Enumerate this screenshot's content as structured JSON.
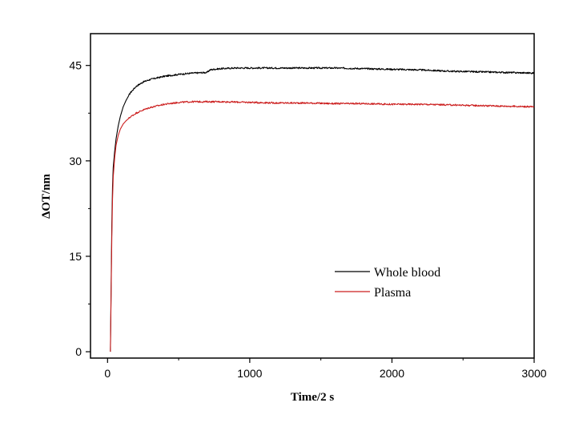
{
  "chart_data": {
    "type": "line",
    "xlabel": "Time/2 s",
    "ylabel": "ΔOT/nm",
    "xlim": [
      -120,
      3000
    ],
    "ylim": [
      -1,
      50
    ],
    "xticks": [
      0,
      1000,
      2000,
      3000
    ],
    "xtick_labels": [
      "0",
      "1000",
      "2000",
      "3000"
    ],
    "yticks": [
      0,
      15,
      30,
      45
    ],
    "ytick_labels": [
      "0",
      "15",
      "30",
      "45"
    ],
    "grid": false,
    "legend_position": "lower-right",
    "series": [
      {
        "name": "Whole blood",
        "color": "#000000",
        "x": [
          20,
          25,
          30,
          35,
          40,
          50,
          60,
          75,
          90,
          110,
          130,
          160,
          200,
          250,
          300,
          400,
          500,
          600,
          700,
          720,
          750,
          800,
          900,
          1000,
          1200,
          1400,
          1600,
          1800,
          2000,
          2200,
          2400,
          2600,
          2800,
          3000
        ],
        "y": [
          0,
          10,
          20,
          26,
          29,
          31.5,
          33.5,
          35.5,
          37,
          38.5,
          39.5,
          40.7,
          41.7,
          42.4,
          42.8,
          43.3,
          43.6,
          43.8,
          43.9,
          44.3,
          44.4,
          44.5,
          44.6,
          44.6,
          44.6,
          44.6,
          44.6,
          44.5,
          44.4,
          44.3,
          44.1,
          44.0,
          43.9,
          43.8
        ]
      },
      {
        "name": "Plasma",
        "color": "#cc1f1f",
        "x": [
          20,
          25,
          30,
          35,
          40,
          50,
          60,
          75,
          90,
          110,
          130,
          160,
          200,
          250,
          300,
          400,
          500,
          600,
          700,
          800,
          1000,
          1200,
          1400,
          1600,
          1800,
          2000,
          2200,
          2400,
          2600,
          2800,
          3000
        ],
        "y": [
          0,
          9,
          18,
          24,
          27.5,
          30.5,
          32.5,
          34,
          35,
          35.8,
          36.3,
          36.9,
          37.5,
          38.0,
          38.4,
          38.9,
          39.2,
          39.3,
          39.3,
          39.3,
          39.2,
          39.1,
          39.1,
          39.0,
          39.0,
          38.9,
          38.9,
          38.8,
          38.7,
          38.6,
          38.5
        ]
      }
    ]
  }
}
